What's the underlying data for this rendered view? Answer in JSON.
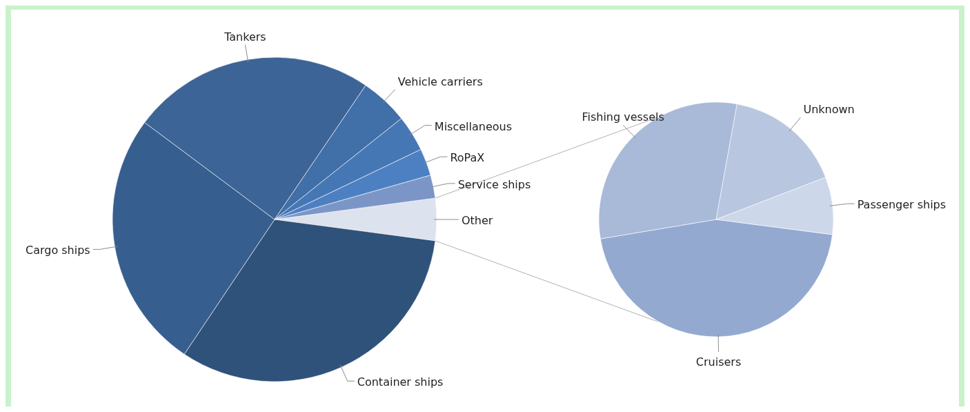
{
  "chart_data": [
    {
      "type": "pie",
      "categories": [
        "Other",
        "Container ships",
        "Cargo ships",
        "Tankers",
        "Vehicle carriers",
        "Miscellaneous",
        "RoPaX",
        "Service ships"
      ],
      "values": [
        4.2,
        32.3,
        25.8,
        24.3,
        4.8,
        3.6,
        2.7,
        2.3
      ],
      "colors": [
        "#dde3ee",
        "#2f527a",
        "#365f8f",
        "#3d6496",
        "#416fa8",
        "#4677b5",
        "#4d80c2",
        "#7b96c6"
      ]
    },
    {
      "type": "pie",
      "categories": [
        "Cruisers",
        "Fishing vessels",
        "Unknown",
        "Passenger ships"
      ],
      "values": [
        45.3,
        30.5,
        16.3,
        7.9
      ],
      "colors": [
        "#93a9d0",
        "#a9b9d8",
        "#b9c6e0",
        "#cdd7ea"
      ]
    }
  ]
}
